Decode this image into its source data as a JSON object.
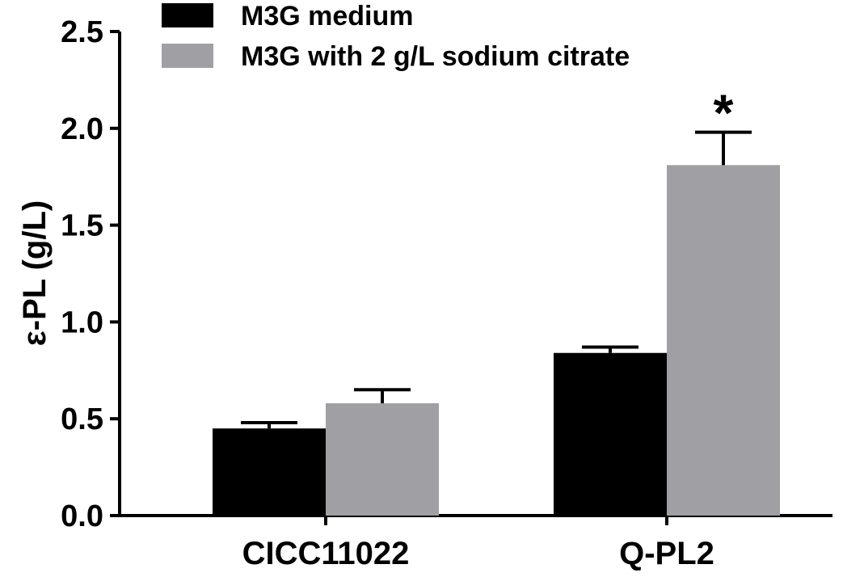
{
  "chart_data": {
    "type": "bar",
    "categories": [
      "CICC11022",
      "Q-PL2"
    ],
    "series": [
      {
        "name": "M3G medium",
        "values": [
          0.45,
          0.84
        ],
        "errors": [
          0.03,
          0.03
        ],
        "color": "#000000"
      },
      {
        "name": "M3G with 2 g/L sodium citrate",
        "values": [
          0.58,
          1.81
        ],
        "errors": [
          0.07,
          0.17
        ],
        "color": "#a0a0a4"
      }
    ],
    "ylabel": "ε-PL (g/L)",
    "xlabel": "",
    "title": "",
    "ylim": [
      0,
      2.5
    ],
    "yticks": [
      "0.0",
      "0.5",
      "1.0",
      "1.5",
      "2.0",
      "2.5"
    ],
    "annotations": [
      {
        "category": "Q-PL2",
        "series": 1,
        "text": "*"
      }
    ],
    "grid": false,
    "legend_position": "top-left"
  }
}
